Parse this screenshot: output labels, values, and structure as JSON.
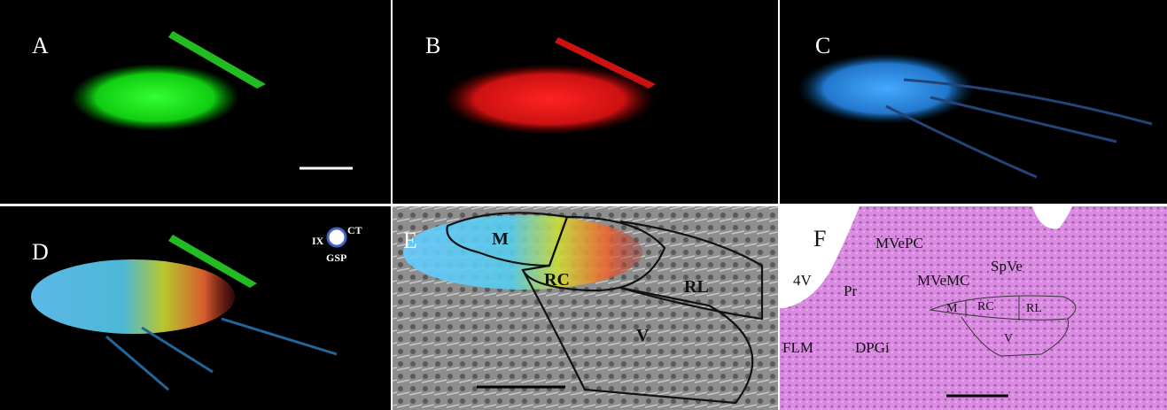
{
  "panels": [
    {
      "label": "A"
    },
    {
      "label": "B"
    },
    {
      "label": "C"
    },
    {
      "label": "D",
      "legend": [
        "IX",
        "CT",
        "GSP"
      ]
    },
    {
      "label": "E",
      "regions": [
        "M",
        "RC",
        "RL",
        "V"
      ]
    },
    {
      "label": "F",
      "regions": [
        "MVePC",
        "SpVe",
        "4V",
        "Pr",
        "MVeMC",
        "M",
        "RC",
        "RL",
        "FLM",
        "DPGi",
        "V"
      ]
    }
  ]
}
